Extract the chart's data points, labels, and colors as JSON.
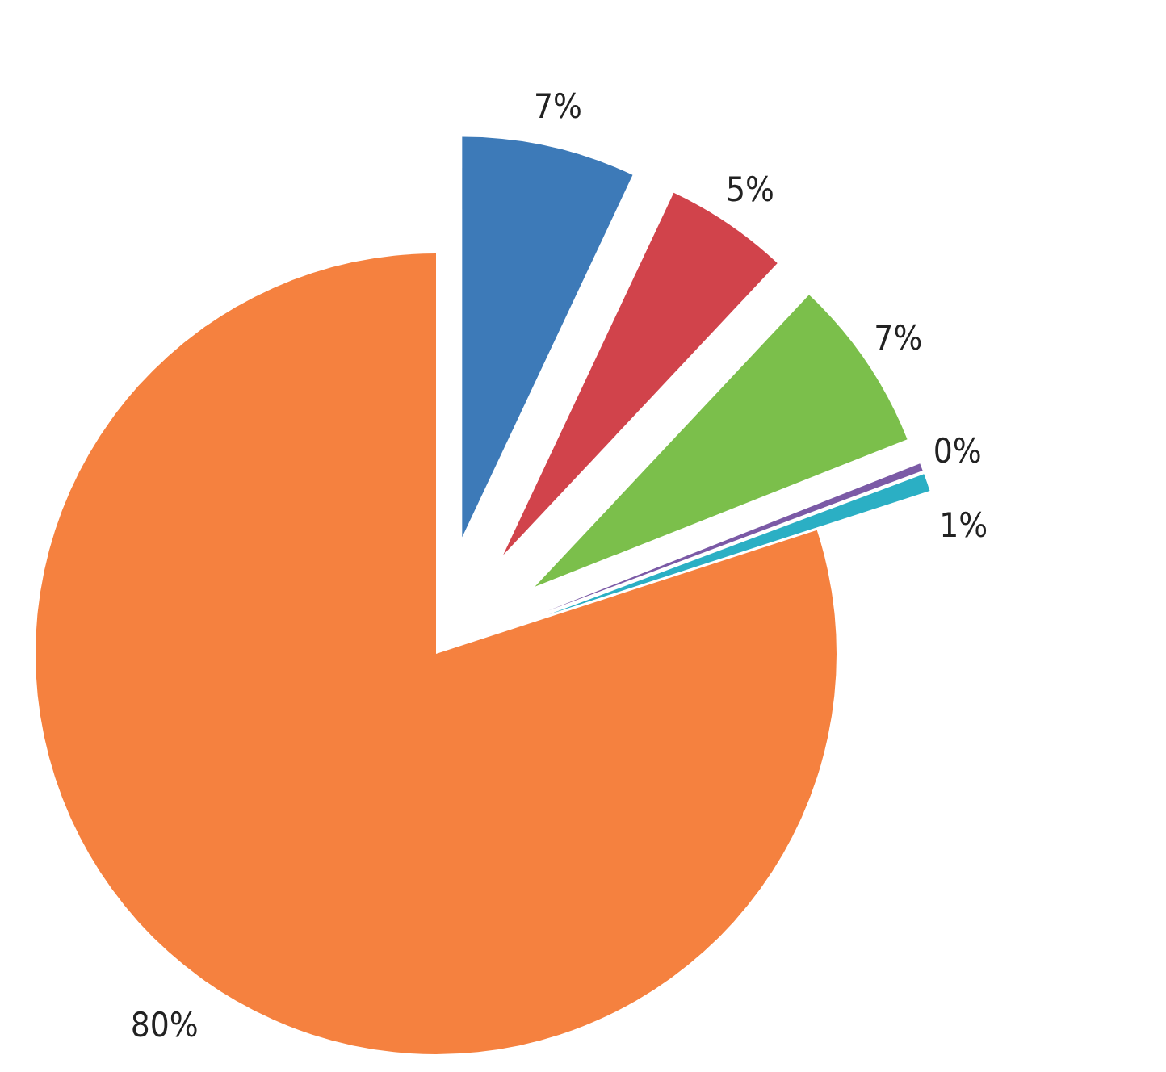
{
  "chart_data": {
    "type": "pie",
    "categories": [
      null,
      null,
      null,
      null,
      null,
      null
    ],
    "values": [
      7,
      5,
      7,
      0.3,
      0.7,
      80
    ],
    "value_labels": [
      "7%",
      "5%",
      "7%",
      "0%",
      "1%",
      "80%"
    ],
    "colors": [
      "#3d7ab8",
      "#d1434b",
      "#7bbf4b",
      "#7b5aa6",
      "#2bafc4",
      "#f5813f"
    ]
  }
}
